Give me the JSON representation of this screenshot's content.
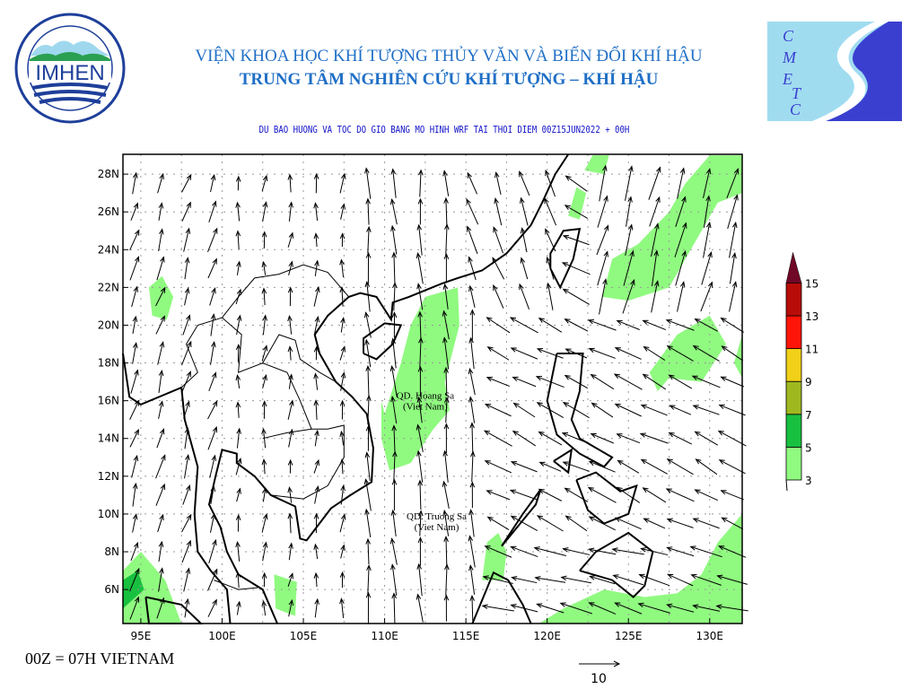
{
  "header": {
    "institute": "VIỆN KHOA HỌC KHÍ TƯỢNG THỦY VĂN VÀ BIẾN ĐỔI KHÍ HẬU",
    "center": "TRUNG TÂM NGHIÊN CỨU KHÍ TƯỢNG – KHÍ HẬU",
    "map_title": "DU BAO HUONG VA TOC DO GIO BANG MO HINH WRF TAI THOI DIEM  00Z15JUN2022 + 00H"
  },
  "logos": {
    "left": {
      "text": "IMHEN",
      "ring_top": "VIEN KHOA HOC",
      "ring_bottom": "KHI TUONG THUY VAN VA BIEN DOI KHI HAU"
    },
    "right": {
      "letters": [
        "C",
        "M",
        "E",
        "T",
        "C"
      ]
    }
  },
  "map": {
    "x_ticks": [
      "95E",
      "100E",
      "105E",
      "110E",
      "115E",
      "120E",
      "125E",
      "130E"
    ],
    "x_tick_values": [
      95,
      100,
      105,
      110,
      115,
      120,
      125,
      130
    ],
    "y_ticks": [
      "6N",
      "8N",
      "10N",
      "12N",
      "14N",
      "16N",
      "18N",
      "20N",
      "22N",
      "24N",
      "26N",
      "28N"
    ],
    "y_tick_values": [
      6,
      8,
      10,
      12,
      14,
      16,
      18,
      20,
      22,
      24,
      26,
      28
    ],
    "lon_range": [
      93.9,
      132.0
    ],
    "lat_range": [
      4.2,
      29.05
    ],
    "labels": [
      {
        "line1": "QD. Hoang Sa",
        "line2": "(Viet Nam)",
        "lon": 112.5,
        "lat": 16.1
      },
      {
        "line1": "QD. Truong Sa",
        "line2": "(Viet Nam)",
        "lon": 113.2,
        "lat": 9.7
      }
    ],
    "reference_vector": {
      "label": "10",
      "units_value": 10
    },
    "land_color": "#000000",
    "shade_color": "#90fa80"
  },
  "colorbar": {
    "levels": [
      "3",
      "5",
      "7",
      "9",
      "11",
      "13",
      "15"
    ],
    "colors": [
      "#90fa80",
      "#18c040",
      "#a0b820",
      "#f0d018",
      "#ff1408",
      "#b80c08",
      "#700828"
    ]
  },
  "footnote": "00Z = 07H VIETNAM"
}
